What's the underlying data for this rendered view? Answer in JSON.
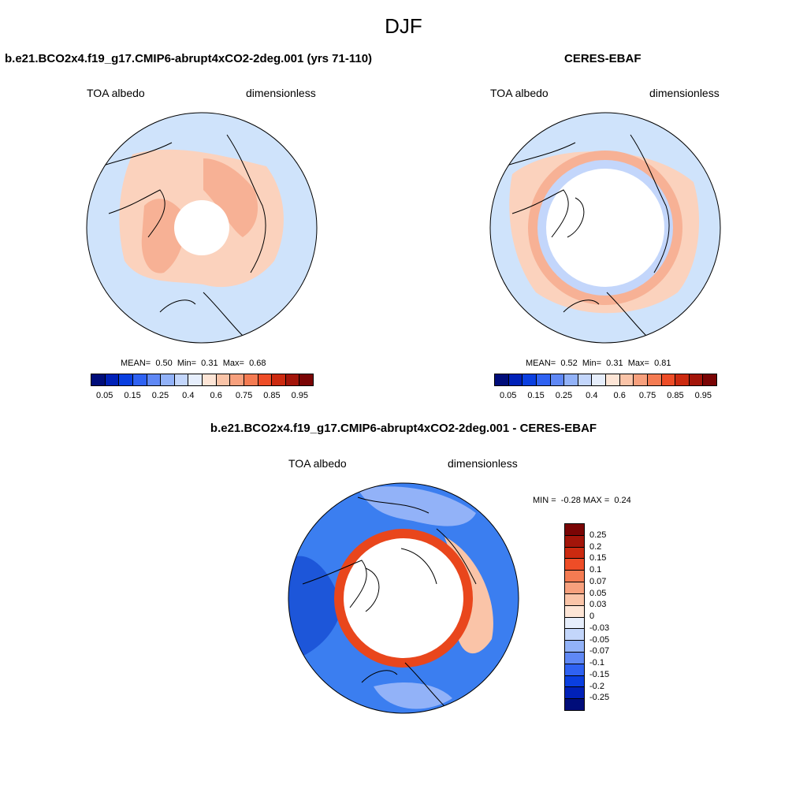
{
  "main_title": "DJF",
  "panels": [
    {
      "title": "b.e21.BCO2x4.f19_g17.CMIP6-abrupt4xCO2-2deg.001 (yrs 71-110)",
      "variable": "TOA albedo",
      "units": "dimensionless",
      "stats_mean_label": "MEAN=",
      "stats_mean": "0.50",
      "stats_min_label": "Min=",
      "stats_min": "0.31",
      "stats_max_label": "Max=",
      "stats_max": "0.68"
    },
    {
      "title": "CERES-EBAF",
      "variable": "TOA albedo",
      "units": "dimensionless",
      "stats_mean_label": "MEAN=",
      "stats_mean": "0.52",
      "stats_min_label": "Min=",
      "stats_min": "0.31",
      "stats_max_label": "Max=",
      "stats_max": "0.81"
    }
  ],
  "diff_panel": {
    "title": "b.e21.BCO2x4.f19_g17.CMIP6-abrupt4xCO2-2deg.001 - CERES-EBAF",
    "variable": "TOA albedo",
    "units": "dimensionless",
    "stats_min_label": "MIN =",
    "stats_min": "-0.28",
    "stats_max_label": "MAX =",
    "stats_max": "0.24"
  },
  "colorbar_abs": {
    "labels": [
      "0.05",
      "0.15",
      "0.25",
      "0.4",
      "0.6",
      "0.75",
      "0.85",
      "0.95"
    ],
    "colors": [
      "#000d7a",
      "#0021b8",
      "#0a3fe0",
      "#2f62f2",
      "#5f88f5",
      "#92b2f8",
      "#c3d6fb",
      "#e6eefc",
      "#fde5d6",
      "#fac4a8",
      "#f7a07d",
      "#f47b52",
      "#ee4d27",
      "#cc2a10",
      "#a3150a",
      "#7a0505"
    ]
  },
  "colorbar_diff": {
    "labels": [
      "0.25",
      "0.2",
      "0.15",
      "0.1",
      "0.07",
      "0.05",
      "0.03",
      "0",
      "-0.03",
      "-0.05",
      "-0.07",
      "-0.1",
      "-0.15",
      "-0.2",
      "-0.25"
    ],
    "colors": [
      "#7a0505",
      "#a3150a",
      "#cc2a10",
      "#ee4d27",
      "#f47b52",
      "#f7a07d",
      "#fac4a8",
      "#fde5d6",
      "#e6eefc",
      "#c3d6fb",
      "#92b2f8",
      "#5f88f5",
      "#2f62f2",
      "#0a3fe0",
      "#0021b8",
      "#000d7a"
    ]
  },
  "colors": {
    "land_outline": "#000000",
    "mask": "#ffffff",
    "ocean_light": "#cfe3fb",
    "warm_light": "#fbd2bd",
    "warm_mid": "#f7b195",
    "ring_red": "#e9461c",
    "diff_blue": "#3b7ef0",
    "diff_dark": "#1d56d9"
  }
}
